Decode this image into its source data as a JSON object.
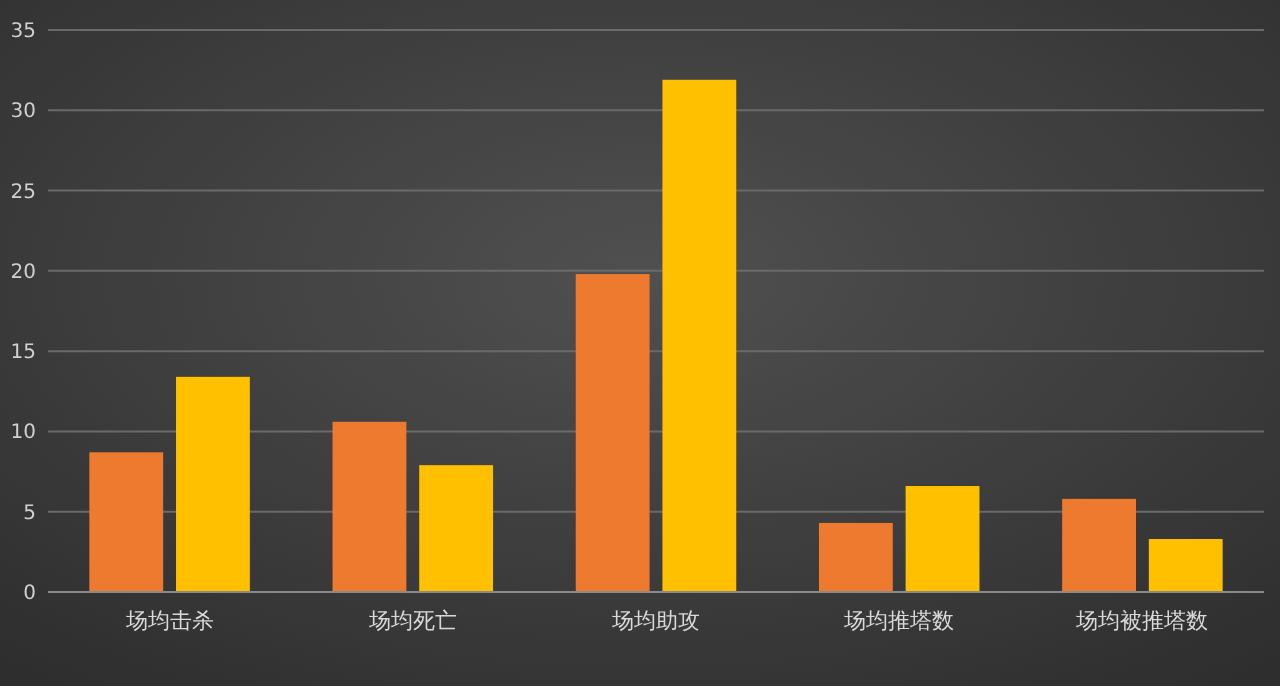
{
  "chart_data": {
    "type": "bar",
    "categories": [
      "场均击杀",
      "场均死亡",
      "场均助攻",
      "场均推塔数",
      "场均被推塔数"
    ],
    "series": [
      {
        "color": "#ee7a30",
        "values": [
          8.7,
          10.6,
          19.8,
          4.3,
          5.8
        ]
      },
      {
        "color": "#ffc000",
        "values": [
          13.4,
          7.9,
          31.9,
          6.6,
          3.3
        ]
      }
    ],
    "ylim": [
      0,
      35
    ],
    "yticks": [
      0,
      5,
      10,
      15,
      20,
      25,
      30,
      35
    ],
    "grid": "y"
  }
}
